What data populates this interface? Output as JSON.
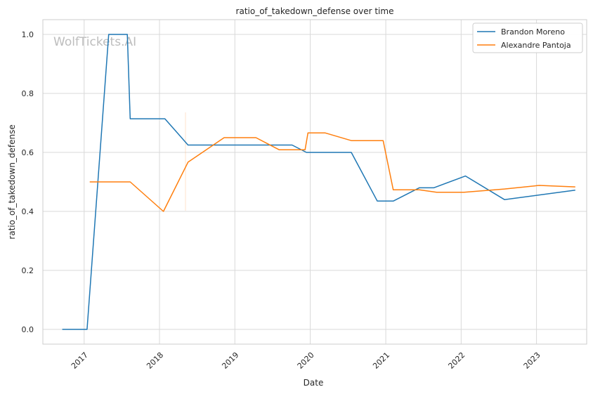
{
  "chart_data": {
    "type": "line",
    "title": "ratio_of_takedown_defense over time",
    "xlabel": "Date",
    "ylabel": "ratio_of_takedown_defense",
    "watermark": "WolfTickets.AI",
    "xlim": [
      "2016-06-15",
      "2023-09-01"
    ],
    "ylim": [
      -0.05,
      1.05
    ],
    "x_ticks": [
      "2017",
      "2018",
      "2019",
      "2020",
      "2021",
      "2022",
      "2023"
    ],
    "y_ticks": [
      "0.0",
      "0.2",
      "0.4",
      "0.6",
      "0.8",
      "1.0"
    ],
    "grid": true,
    "legend_position": "top-right",
    "series": [
      {
        "name": "Brandon Moreno",
        "color": "#1f77b4",
        "points": [
          [
            "2016-09-17",
            0.0
          ],
          [
            "2017-01-15",
            0.0
          ],
          [
            "2017-04-30",
            1.0
          ],
          [
            "2017-07-29",
            1.0
          ],
          [
            "2017-08-12",
            0.714
          ],
          [
            "2018-01-27",
            0.714
          ],
          [
            "2018-05-19",
            0.625
          ],
          [
            "2019-10-05",
            0.625
          ],
          [
            "2019-12-14",
            0.6
          ],
          [
            "2020-07-18",
            0.6
          ],
          [
            "2020-11-21",
            0.435
          ],
          [
            "2021-02-06",
            0.435
          ],
          [
            "2021-06-12",
            0.48
          ],
          [
            "2021-08-21",
            0.48
          ],
          [
            "2022-01-22",
            0.52
          ],
          [
            "2022-07-30",
            0.44
          ],
          [
            "2023-07-08",
            0.472
          ]
        ]
      },
      {
        "name": "Alexandre Pantoja",
        "color": "#ff7f0e",
        "points": [
          [
            "2017-01-28",
            0.5
          ],
          [
            "2017-08-12",
            0.5
          ],
          [
            "2018-01-20",
            0.4
          ],
          [
            "2018-05-19",
            0.567
          ],
          [
            "2018-11-10",
            0.65
          ],
          [
            "2019-04-13",
            0.65
          ],
          [
            "2019-08-03",
            0.609
          ],
          [
            "2019-12-07",
            0.609
          ],
          [
            "2019-12-21",
            0.666
          ],
          [
            "2020-03-14",
            0.666
          ],
          [
            "2020-07-18",
            0.64
          ],
          [
            "2020-12-19",
            0.64
          ],
          [
            "2021-02-06",
            0.473
          ],
          [
            "2021-06-12",
            0.473
          ],
          [
            "2021-09-04",
            0.465
          ],
          [
            "2022-01-15",
            0.465
          ],
          [
            "2022-07-30",
            0.476
          ],
          [
            "2023-01-14",
            0.488
          ],
          [
            "2023-07-08",
            0.483
          ]
        ]
      }
    ]
  }
}
